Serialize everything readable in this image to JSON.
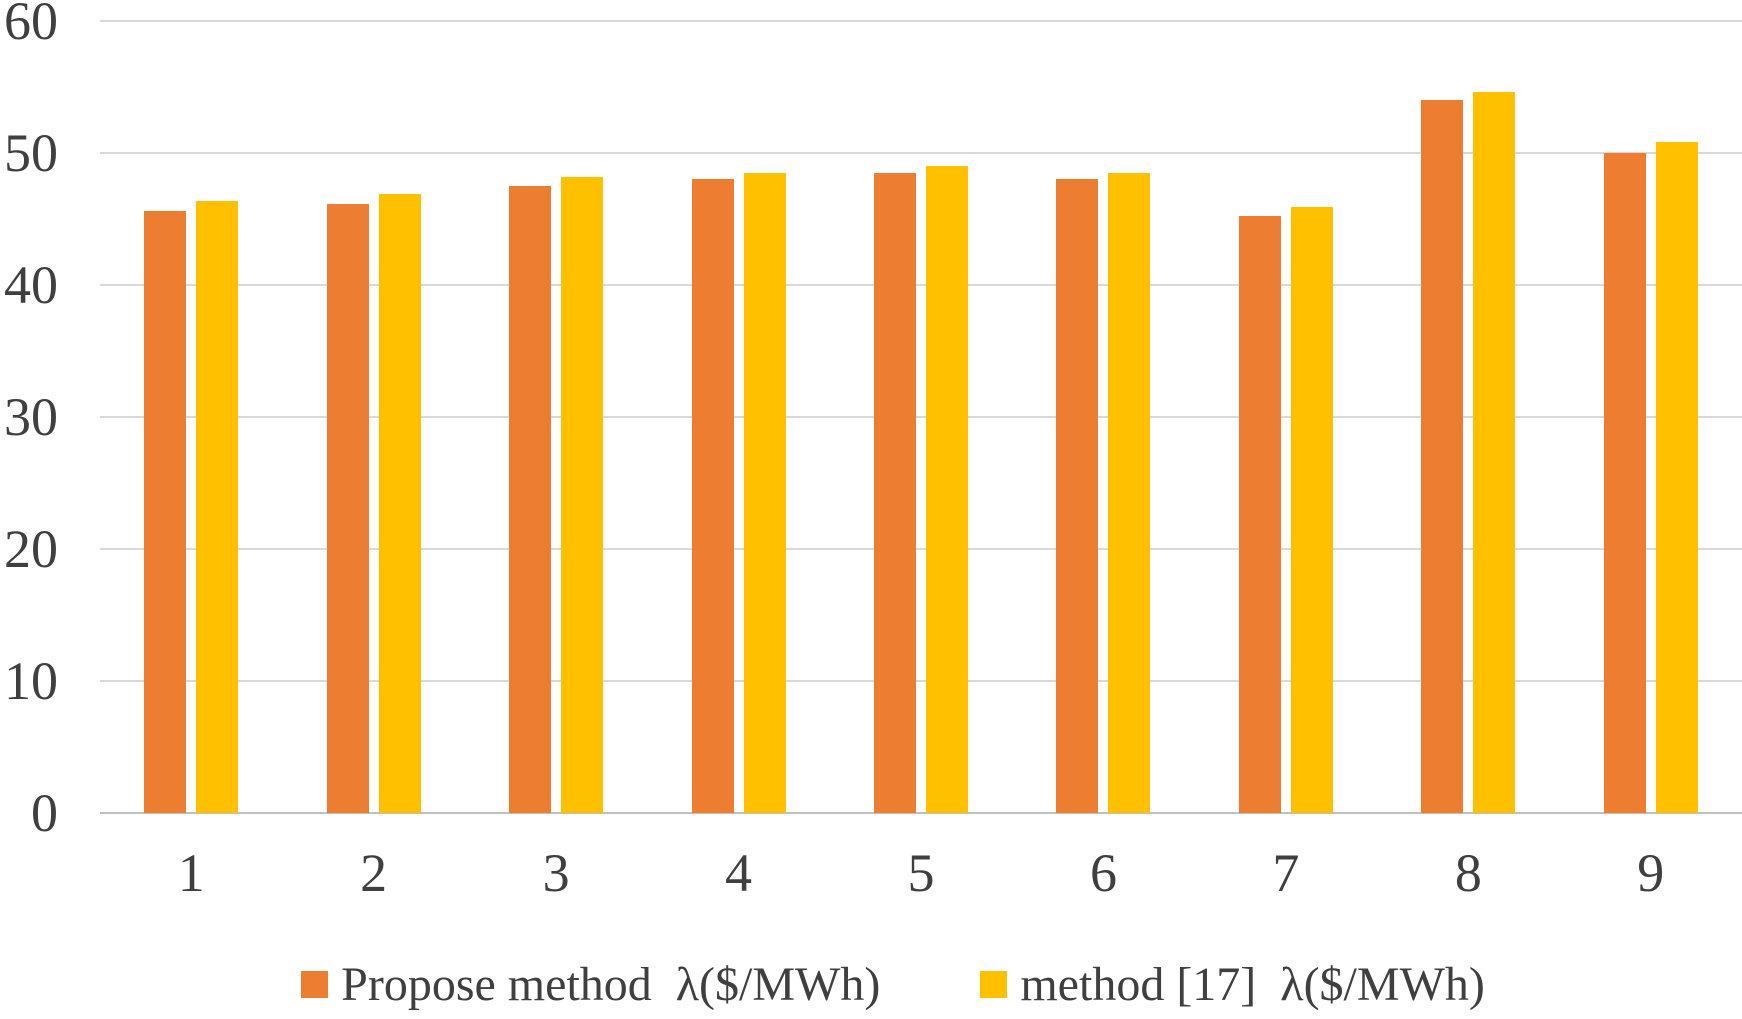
{
  "chart_data": {
    "type": "bar",
    "title": "",
    "xlabel": "",
    "ylabel": "",
    "categories": [
      "1",
      "2",
      "3",
      "4",
      "5",
      "6",
      "7",
      "8",
      "9"
    ],
    "series": [
      {
        "name": "Propose method  λ($/MWh)",
        "color": "#ED7D31",
        "values": [
          45.6,
          46.1,
          47.5,
          48.0,
          48.5,
          48.0,
          45.2,
          54.0,
          50.0
        ]
      },
      {
        "name": "method [17]  λ($/MWh)",
        "color": "#FFC000",
        "values": [
          46.4,
          46.9,
          48.2,
          48.5,
          49.0,
          48.5,
          45.9,
          54.6,
          50.8
        ]
      }
    ],
    "ylim": [
      0,
      60
    ],
    "yticks": [
      0,
      10,
      20,
      30,
      40,
      50,
      60
    ],
    "grid": "horizontal",
    "legend_position": "bottom"
  },
  "colors": {
    "gridline": "#D9D9D9",
    "axis_line": "#C0C0C0",
    "tick_text": "#3F3F3F",
    "background": "#FFFFFF"
  }
}
